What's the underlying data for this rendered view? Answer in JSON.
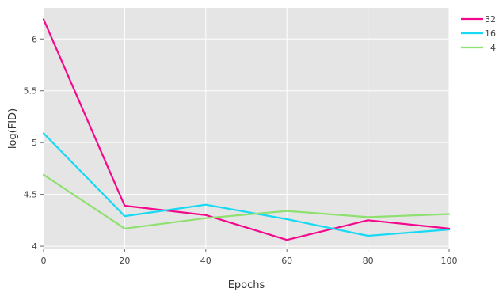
{
  "chart_data": {
    "type": "line",
    "title": "",
    "xlabel": "Epochs",
    "ylabel": "log(FID)",
    "x": [
      0,
      20,
      40,
      60,
      80,
      100
    ],
    "xlim": [
      0,
      100
    ],
    "ylim": [
      3.97,
      6.3
    ],
    "xticks": [
      0,
      20,
      40,
      60,
      80,
      100
    ],
    "yticks": [
      4,
      4.5,
      5,
      5.5,
      6
    ],
    "xtick_labels": [
      "0",
      "20",
      "40",
      "60",
      "80",
      "100"
    ],
    "ytick_labels": [
      "4",
      "4.5",
      "5",
      "5.5",
      "6"
    ],
    "grid": true,
    "legend_position": "top-right",
    "background": "#e5e5e5",
    "series": [
      {
        "name": "32",
        "color": "#f4098d",
        "values": [
          6.19,
          4.39,
          4.3,
          4.06,
          4.25,
          4.17
        ]
      },
      {
        "name": "16",
        "color": "#16d9f3",
        "values": [
          5.09,
          4.29,
          4.4,
          4.26,
          4.1,
          4.16
        ]
      },
      {
        "name": "4",
        "color": "#8ee06f",
        "values": [
          4.69,
          4.17,
          4.27,
          4.34,
          4.28,
          4.31
        ]
      }
    ]
  }
}
